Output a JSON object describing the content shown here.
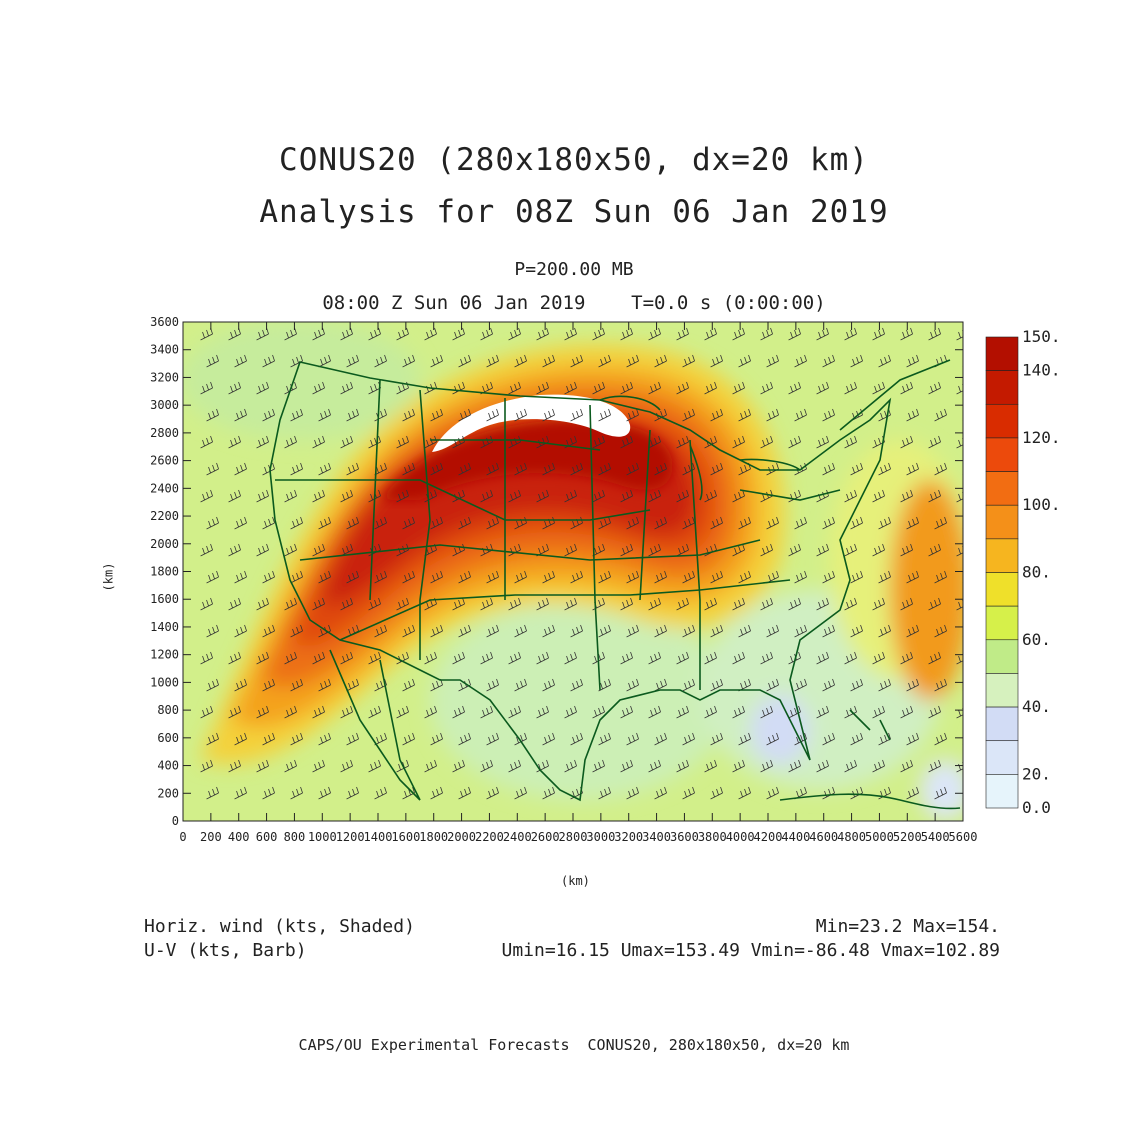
{
  "title_line1": "CONUS20 (280x180x50, dx=20 km)",
  "title_line2": "Analysis for 08Z Sun 06 Jan 2019",
  "level": "P=200.00 MB",
  "valid_time": "08:00 Z Sun 06 Jan 2019    T=0.0 s (0:00:00)",
  "x_axis_label": "(km)",
  "y_axis_label": "(km)",
  "x_ticks": [
    "0",
    "200",
    "400",
    "600",
    "800",
    "1000",
    "1200",
    "1400",
    "1600",
    "1800",
    "2000",
    "2200",
    "2400",
    "2600",
    "2800",
    "3000",
    "3200",
    "3400",
    "3600",
    "3800",
    "4000",
    "4200",
    "4400",
    "4600",
    "4800",
    "5000",
    "5200",
    "5400",
    "5600"
  ],
  "y_ticks": [
    "0",
    "200",
    "400",
    "600",
    "800",
    "1000",
    "1200",
    "1400",
    "1600",
    "1800",
    "2000",
    "2200",
    "2400",
    "2600",
    "2800",
    "3000",
    "3200",
    "3400",
    "3600"
  ],
  "colorbar": {
    "labels": [
      "150.",
      "140.",
      "120.",
      "100.",
      "80.",
      "60.",
      "40.",
      "20.",
      "0.0"
    ],
    "colors": [
      "#b30f00",
      "#c41a00",
      "#d92c00",
      "#ec4a0c",
      "#f26d12",
      "#f49019",
      "#f6b51f",
      "#efe02a",
      "#d6f04a",
      "#c0eb88",
      "#d6f1be",
      "#d2dcf5",
      "#dbe6f8",
      "#e6f4fb"
    ]
  },
  "legend": {
    "field1": "Horiz. wind (kts, Shaded)",
    "field2": "U-V (kts, Barb)",
    "stats1": "Min=23.2 Max=154.",
    "stats2": "Umin=16.15 Umax=153.49 Vmin=-86.48 Vmax=102.89"
  },
  "footer": "CAPS/OU Experimental Forecasts  CONUS20, 280x180x50, dx=20 km",
  "map": {
    "domain_x_km": [
      0,
      5600
    ],
    "domain_y_km": [
      0,
      3600
    ],
    "jet_core_label": "wind maximum > 150 kts over northern plains",
    "boundary_color": "#0b5a1e"
  }
}
